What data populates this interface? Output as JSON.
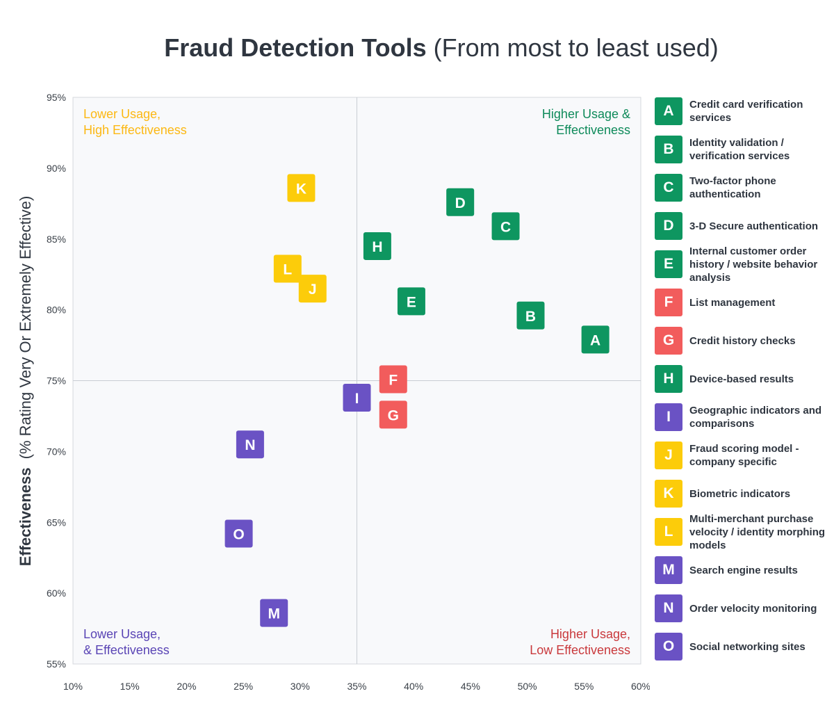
{
  "title": {
    "bold": "Fraud Detection Tools",
    "normal": "(From most to least used)"
  },
  "colors": {
    "green": "#0e9660",
    "red": "#f25c5c",
    "purple": "#6a52c4",
    "yellow": "#fccc0a"
  },
  "chart_data": {
    "type": "scatter",
    "xlim": [
      10,
      60
    ],
    "ylim": [
      55,
      95
    ],
    "x_ticks": [
      10,
      15,
      20,
      25,
      30,
      35,
      40,
      45,
      50,
      55,
      60
    ],
    "y_ticks": [
      55,
      60,
      65,
      70,
      75,
      80,
      85,
      90,
      95
    ],
    "x_tick_labels": [
      "10%",
      "15%",
      "20%",
      "25%",
      "30%",
      "35%",
      "40%",
      "45%",
      "50%",
      "55%",
      "60%"
    ],
    "y_tick_labels": [
      "55%",
      "60%",
      "65%",
      "70%",
      "75%",
      "80%",
      "85%",
      "90%",
      "95%"
    ],
    "ylabel_bold": "Effectiveness",
    "ylabel_normal": "(% Rating Very Or Extremely Effective)",
    "divider_x": 35,
    "divider_y": 75,
    "quadrants": [
      {
        "lines": [
          "Lower Usage,",
          "High Effectiveness"
        ],
        "position": "top-left",
        "color": "#fcb813"
      },
      {
        "lines": [
          "Higher Usage &",
          "Effectiveness"
        ],
        "position": "top-right",
        "color": "#0e8a5a"
      },
      {
        "lines": [
          "Lower Usage,",
          "& Effectiveness"
        ],
        "position": "bottom-left",
        "color": "#5a45b5"
      },
      {
        "lines": [
          "Higher Usage,",
          "Low Effectiveness"
        ],
        "position": "bottom-right",
        "color": "#c9393c"
      }
    ],
    "points": [
      {
        "label": "A",
        "x": 56.0,
        "y": 77.9,
        "group": "green"
      },
      {
        "label": "B",
        "x": 50.3,
        "y": 79.6,
        "group": "green"
      },
      {
        "label": "C",
        "x": 48.1,
        "y": 85.9,
        "group": "green"
      },
      {
        "label": "D",
        "x": 44.1,
        "y": 87.6,
        "group": "green"
      },
      {
        "label": "E",
        "x": 39.8,
        "y": 80.6,
        "group": "green"
      },
      {
        "label": "F",
        "x": 38.2,
        "y": 75.1,
        "group": "red"
      },
      {
        "label": "G",
        "x": 38.2,
        "y": 72.6,
        "group": "red"
      },
      {
        "label": "H",
        "x": 36.8,
        "y": 84.5,
        "group": "green"
      },
      {
        "label": "I",
        "x": 35.0,
        "y": 73.8,
        "group": "purple"
      },
      {
        "label": "J",
        "x": 31.1,
        "y": 81.5,
        "group": "yellow"
      },
      {
        "label": "K",
        "x": 30.1,
        "y": 88.6,
        "group": "yellow"
      },
      {
        "label": "L",
        "x": 28.9,
        "y": 82.9,
        "group": "yellow"
      },
      {
        "label": "M",
        "x": 27.7,
        "y": 58.6,
        "group": "purple"
      },
      {
        "label": "N",
        "x": 25.6,
        "y": 70.5,
        "group": "purple"
      },
      {
        "label": "O",
        "x": 24.6,
        "y": 64.2,
        "group": "purple"
      }
    ]
  },
  "legend": [
    {
      "letter": "A",
      "label": "Credit card verification services",
      "group": "green"
    },
    {
      "letter": "B",
      "label": "Identity validation / verification services",
      "group": "green"
    },
    {
      "letter": "C",
      "label": "Two-factor phone authentication",
      "group": "green"
    },
    {
      "letter": "D",
      "label": "3-D Secure authentication",
      "group": "green"
    },
    {
      "letter": "E",
      "label": "Internal customer order history / website behavior analysis",
      "group": "green"
    },
    {
      "letter": "F",
      "label": "List management",
      "group": "red"
    },
    {
      "letter": "G",
      "label": "Credit history checks",
      "group": "red"
    },
    {
      "letter": "H",
      "label": "Device-based results",
      "group": "green"
    },
    {
      "letter": "I",
      "label": "Geographic indicators and comparisons",
      "group": "purple"
    },
    {
      "letter": "J",
      "label": "Fraud scoring model - company specific",
      "group": "yellow"
    },
    {
      "letter": "K",
      "label": "Biometric indicators",
      "group": "yellow"
    },
    {
      "letter": "L",
      "label": "Multi-merchant purchase velocity / identity morphing models",
      "group": "yellow"
    },
    {
      "letter": "M",
      "label": "Search engine results",
      "group": "purple"
    },
    {
      "letter": "N",
      "label": "Order velocity monitoring",
      "group": "purple"
    },
    {
      "letter": "O",
      "label": "Social networking sites",
      "group": "purple"
    }
  ]
}
